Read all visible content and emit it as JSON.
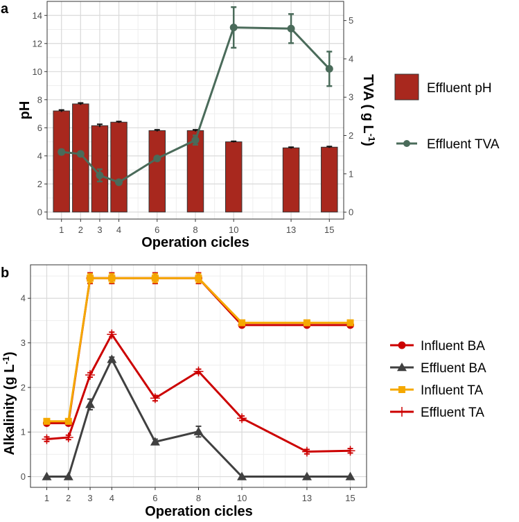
{
  "chart_data": [
    {
      "panel_label": "a",
      "type": "bar+line",
      "x": [
        1,
        2,
        3,
        4,
        6,
        8,
        10,
        13,
        15
      ],
      "xlabel": "Operation cicles",
      "ylabel_left": "pH",
      "ylabel_right_main": "TVA ( g L",
      "ylabel_right_sup": "-1",
      "ylabel_right_end": ")",
      "ylim_left": [
        -0.5,
        15
      ],
      "yticks_left": [
        0,
        2,
        4,
        6,
        8,
        10,
        12,
        14
      ],
      "ylim_right": [
        -0.18,
        5.5
      ],
      "yticks_right": [
        0,
        1,
        2,
        3,
        4,
        5
      ],
      "grid": true,
      "legend_position": "right",
      "series": [
        {
          "name": "Effluent pH",
          "kind": "bar",
          "axis": "left",
          "color": "#A8281E",
          "values": [
            7.2,
            7.7,
            6.15,
            6.4,
            5.8,
            5.8,
            5.0,
            4.57,
            4.62
          ],
          "errors": [
            0.07,
            0.07,
            0.1,
            0.05,
            0.06,
            0.06,
            0.04,
            0.05,
            0.05
          ]
        },
        {
          "name": "Effluent TVA",
          "kind": "line",
          "axis": "right",
          "color": "#4A6B5A",
          "values": [
            1.57,
            1.52,
            0.96,
            0.78,
            1.4,
            1.88,
            4.82,
            4.79,
            3.74
          ],
          "errors": [
            0.06,
            0.05,
            0.16,
            0.05,
            0.05,
            0.12,
            0.53,
            0.38,
            0.45
          ]
        }
      ]
    },
    {
      "panel_label": "b",
      "type": "line",
      "x": [
        1,
        2,
        3,
        4,
        6,
        8,
        10,
        13,
        15
      ],
      "xlabel": "Operation cicles",
      "ylabel_main": "Alkalinity (g L",
      "ylabel_sup": "-1",
      "ylabel_end": ")",
      "ylim": [
        -0.24,
        4.75
      ],
      "yticks": [
        0,
        1,
        2,
        3,
        4
      ],
      "grid": true,
      "legend_position": "right",
      "series": [
        {
          "name": "Influent BA",
          "color": "#CC0000",
          "marker": "circle",
          "values": [
            1.2,
            1.2,
            4.45,
            4.45,
            4.45,
            4.45,
            3.4,
            3.4,
            3.4
          ],
          "errors": [
            0,
            0,
            0.12,
            0.12,
            0.12,
            0.12,
            0,
            0,
            0
          ]
        },
        {
          "name": "Effluent BA",
          "color": "#404040",
          "marker": "triangle",
          "values": [
            0,
            0,
            1.62,
            2.63,
            0.78,
            1.01,
            0,
            0,
            0
          ],
          "errors": [
            0,
            0,
            0.12,
            0.05,
            0.06,
            0.12,
            0,
            0,
            0
          ]
        },
        {
          "name": "Influent TA",
          "color": "#F5A800",
          "marker": "square",
          "values": [
            1.24,
            1.24,
            4.45,
            4.45,
            4.45,
            4.45,
            3.45,
            3.45,
            3.45
          ],
          "errors": [
            0,
            0,
            0.1,
            0.1,
            0.1,
            0.1,
            0,
            0,
            0
          ]
        },
        {
          "name": "Effluent TA",
          "color": "#CC0000",
          "marker": "plus",
          "values": [
            0.84,
            0.88,
            2.28,
            3.19,
            1.76,
            2.36,
            1.31,
            0.56,
            0.58
          ],
          "errors": [
            0.05,
            0.05,
            0.05,
            0.05,
            0.06,
            0.05,
            0.05,
            0.05,
            0.05
          ]
        }
      ]
    }
  ]
}
